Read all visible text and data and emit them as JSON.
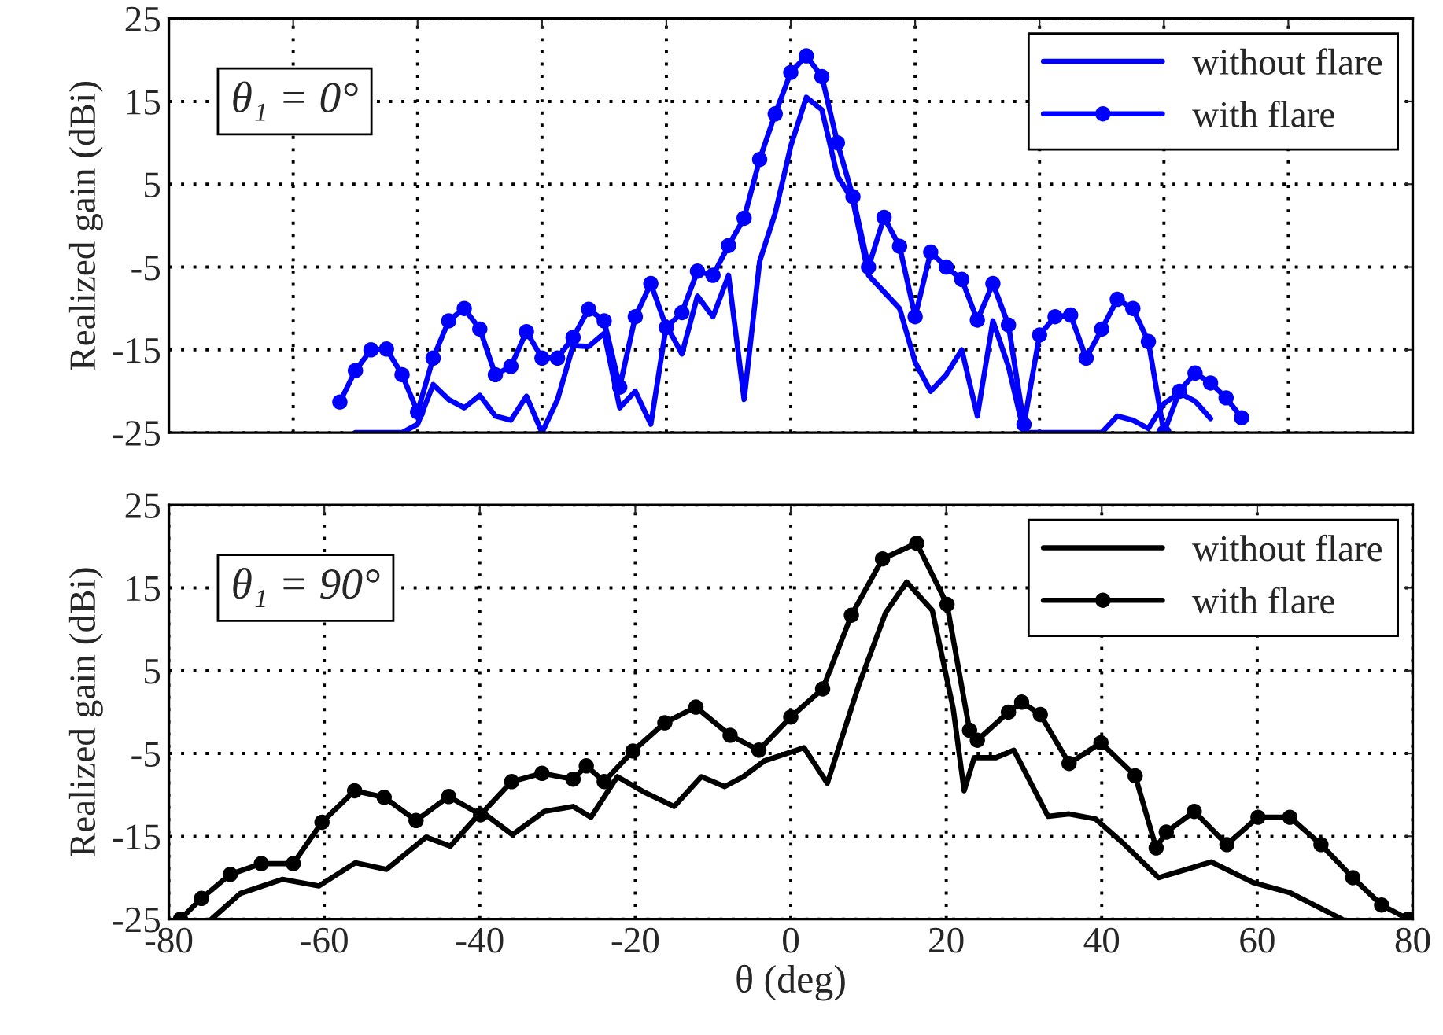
{
  "chart_data": [
    {
      "type": "line",
      "ylabel": "Realized gain (dBi)",
      "annotations": [
        "θ₁ = 0°"
      ],
      "categories": [
        null,
        null,
        null,
        null,
        null,
        null,
        null,
        null,
        null,
        null,
        null,
        null,
        null,
        null,
        null,
        null,
        null,
        null,
        null,
        null,
        null,
        null,
        null,
        null,
        null,
        null,
        null,
        null,
        null,
        null,
        null,
        null,
        null,
        null,
        null,
        null,
        null,
        null,
        null,
        null,
        null,
        null,
        null,
        null,
        null,
        null,
        null,
        null,
        null,
        null,
        null,
        null,
        null,
        null,
        null,
        null,
        null,
        null,
        null,
        null,
        null,
        null,
        null,
        null,
        null,
        null,
        null,
        null,
        null,
        null,
        null,
        null,
        null,
        null,
        null,
        null,
        null,
        null,
        null,
        null,
        null
      ],
      "ylim": [
        -25,
        25
      ],
      "yticks": [
        -25,
        -15,
        -5,
        5,
        15,
        25
      ],
      "grid": true,
      "legend": "top right",
      "tick_labels": "y",
      "series": [
        {
          "name": "without flare",
          "color": "#0000ff",
          "marker": "none",
          "values": [
            null,
            null,
            null,
            null,
            null,
            null,
            null,
            null,
            null,
            null,
            null,
            null,
            -25,
            -25,
            -25,
            -25,
            -24,
            -19.2,
            -21,
            -22,
            -20.5,
            -23,
            -23.5,
            -20.6,
            -25,
            -21,
            -14.5,
            -14.6,
            -13,
            -22,
            -20,
            -24,
            -12,
            -15.5,
            -8.5,
            -11,
            -6,
            -21,
            -4.3,
            1.5,
            9.6,
            15.5,
            14,
            6,
            3,
            -6,
            -8,
            -10,
            -16.5,
            -20,
            -18,
            -15,
            -23,
            -11.5,
            -17,
            -25,
            -25,
            -25,
            -25,
            -25,
            -25,
            -23,
            -23.5,
            -24.5,
            -21.5,
            -20.2,
            -21.2,
            -23.3,
            null,
            null,
            null,
            null,
            null,
            null,
            null,
            null,
            null,
            null,
            null,
            null,
            null
          ]
        },
        {
          "name": "with flare",
          "color": "#0000ff",
          "marker": "circle",
          "values": [
            null,
            null,
            null,
            null,
            null,
            null,
            null,
            null,
            null,
            null,
            null,
            -21.3,
            -17.5,
            -15,
            -14.9,
            -18,
            -22.5,
            -16,
            -11.5,
            -10,
            -12.5,
            -18,
            -17,
            -12.8,
            -16,
            -16,
            -13.5,
            -10.1,
            -11.5,
            -19.5,
            -11,
            -7,
            -12.3,
            -10.5,
            -5.5,
            -6,
            -2.4,
            0.9,
            8,
            13.5,
            18.5,
            20.5,
            18,
            10,
            3.5,
            -5,
            1,
            -2.5,
            -11,
            -3.2,
            -5,
            -6.5,
            -11.4,
            -7,
            -12,
            -24,
            -13.2,
            -11,
            -10.8,
            -16,
            -12.5,
            -8.9,
            -10,
            -14,
            -25,
            -20,
            -17.8,
            -19,
            -20.8,
            -23.2,
            null,
            null,
            null,
            null,
            null,
            null,
            null,
            null,
            null,
            null,
            null
          ]
        }
      ]
    },
    {
      "type": "line",
      "xlabel": "θ (deg)",
      "ylabel": "Realized gain (dBi)",
      "annotations": [
        "θ₁ = 90°"
      ],
      "xlim": [
        -80,
        80
      ],
      "xticks": [
        -80,
        -60,
        -40,
        -20,
        0,
        20,
        40,
        60,
        80
      ],
      "ylim": [
        -25,
        25
      ],
      "yticks": [
        -25,
        -15,
        -5,
        5,
        15,
        25
      ],
      "grid": true,
      "legend": "top right",
      "series": [
        {
          "name": "without flare",
          "color": "#000000",
          "marker": "none",
          "x": [
            -74.5,
            -70.8,
            -65.4,
            -60.7,
            -56,
            -52,
            -46.9,
            -43.8,
            -39.8,
            -35.8,
            -31.7,
            -28,
            -25.7,
            -22.3,
            -19,
            -15,
            -11.5,
            -8.5,
            -6.1,
            -3.4,
            1.7,
            4.7,
            8.8,
            12.2,
            14.9,
            18.2,
            20.9,
            22.3,
            23.6,
            26.4,
            28.7,
            33.1,
            35.8,
            39.2,
            42.6,
            47.3,
            54.1,
            59.5,
            64.2,
            70.9
          ],
          "values": [
            -25,
            -21.9,
            -20.2,
            -21,
            -18.2,
            -19,
            -15.1,
            -16.2,
            -12,
            -14.8,
            -12,
            -11.4,
            -12.7,
            -7.8,
            -9.6,
            -11.4,
            -7.8,
            -9,
            -7.8,
            -5.9,
            -4.3,
            -8.6,
            3.4,
            12,
            15.7,
            12.3,
            0.4,
            -9.5,
            -5.5,
            -5.5,
            -4.6,
            -12.6,
            -12.3,
            -12.9,
            -15.7,
            -20,
            -18.1,
            -20.6,
            -21.8,
            -25
          ]
        },
        {
          "name": "with flare",
          "color": "#000000",
          "marker": "circle",
          "x": [
            -78.5,
            -75.8,
            -72.1,
            -68.1,
            -64,
            -60.3,
            -56.1,
            -52.3,
            -48.2,
            -44,
            -39.9,
            -35.9,
            -32,
            -28,
            -26.3,
            -24,
            -20.3,
            -16.2,
            -12.2,
            -7.8,
            -4.1,
            0,
            4.1,
            7.8,
            11.8,
            16.2,
            20.1,
            23,
            24,
            28,
            29.7,
            32.1,
            35.8,
            39.9,
            44.3,
            47,
            48.3,
            51.9,
            56.1,
            60.1,
            64.2,
            68.2,
            72.3,
            76,
            79.4
          ],
          "values": [
            -25,
            -22.5,
            -19.6,
            -18.3,
            -18.3,
            -13.3,
            -9.5,
            -10.3,
            -13.1,
            -10.2,
            -12.4,
            -8.4,
            -7.4,
            -8.1,
            -6.5,
            -8.4,
            -4.7,
            -1.3,
            0.6,
            -2.8,
            -4.6,
            -0.6,
            2.8,
            11.7,
            18.5,
            20.4,
            13,
            -2.2,
            -3.4,
            0,
            1.2,
            -0.3,
            -6.2,
            -3.7,
            -7.7,
            -16.4,
            -14.5,
            -12,
            -16,
            -12.7,
            -12.7,
            -16,
            -20,
            -23.3,
            -25
          ]
        }
      ]
    }
  ]
}
